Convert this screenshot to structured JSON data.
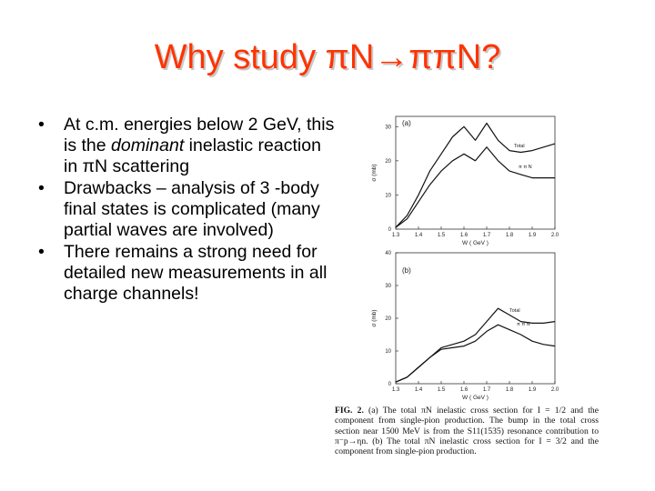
{
  "slide": {
    "title": "Why study πN→ππN?",
    "bullets": [
      {
        "before": "At c.m. energies below 2 GeV, this is the ",
        "emph": "dominant",
        "after": " inelastic reaction in πN scattering"
      },
      {
        "before": "Drawbacks – analysis of 3 -body final states is complicated (many partial waves are involved)",
        "emph": "",
        "after": ""
      },
      {
        "before": "There remains a strong need for detailed new measurements in all charge channels!",
        "emph": "",
        "after": ""
      }
    ],
    "bullet_marker": "•"
  },
  "figure": {
    "panels": [
      {
        "label": "(a)",
        "ylabel": "σ (mb)",
        "xlabel": "W ( GeV )",
        "yticks": [
          "0",
          "10",
          "20",
          "30"
        ],
        "xticks": [
          "1.3",
          "1.4",
          "1.5",
          "1.6",
          "1.7",
          "1.8",
          "1.9",
          "2.0"
        ],
        "curve_labels": [
          "Total",
          "π π N"
        ]
      },
      {
        "label": "(b)",
        "ylabel": "σ (mb)",
        "xlabel": "W ( GeV )",
        "yticks": [
          "0",
          "10",
          "20",
          "30",
          "40"
        ],
        "xticks": [
          "1.3",
          "1.4",
          "1.5",
          "1.6",
          "1.7",
          "1.8",
          "1.9",
          "2.0"
        ],
        "curve_labels": [
          "Total",
          "π π N"
        ]
      }
    ],
    "caption": {
      "fig_label": "FIG. 2.",
      "text": "(a) The total πN inelastic cross section for I = 1/2 and the component from single-pion production. The bump in the total cross section near 1500 MeV is from the S11(1535) resonance contribution to π⁻p→ηn. (b) The total πN inelastic cross section for I = 3/2 and the component from single-pion production."
    }
  },
  "chart_data": [
    {
      "type": "line",
      "title": "(a)",
      "xlabel": "W ( GeV )",
      "ylabel": "σ (mb)",
      "xlim": [
        1.3,
        2.0
      ],
      "ylim": [
        0,
        33
      ],
      "grid": false,
      "series": [
        {
          "name": "Total",
          "x": [
            1.3,
            1.35,
            1.4,
            1.45,
            1.5,
            1.55,
            1.6,
            1.65,
            1.7,
            1.75,
            1.8,
            1.85,
            1.9,
            1.95,
            2.0
          ],
          "y": [
            0.5,
            4,
            10,
            17,
            22,
            27,
            30,
            26,
            31,
            26,
            23,
            22.5,
            23,
            24,
            25
          ]
        },
        {
          "name": "π π N",
          "x": [
            1.3,
            1.35,
            1.4,
            1.45,
            1.5,
            1.55,
            1.6,
            1.65,
            1.7,
            1.75,
            1.8,
            1.85,
            1.9,
            1.95,
            2.0
          ],
          "y": [
            0.5,
            3,
            8,
            13,
            17,
            20,
            22,
            20,
            24,
            20,
            17,
            16,
            15,
            15,
            15
          ]
        }
      ]
    },
    {
      "type": "line",
      "title": "(b)",
      "xlabel": "W ( GeV )",
      "ylabel": "σ (mb)",
      "xlim": [
        1.3,
        2.0
      ],
      "ylim": [
        0,
        40
      ],
      "grid": false,
      "series": [
        {
          "name": "Total",
          "x": [
            1.3,
            1.35,
            1.4,
            1.45,
            1.5,
            1.55,
            1.6,
            1.65,
            1.7,
            1.75,
            1.8,
            1.85,
            1.9,
            1.95,
            2.0
          ],
          "y": [
            0.5,
            2,
            5,
            8,
            11,
            12,
            13,
            15,
            19,
            23,
            21,
            19,
            18.5,
            18.5,
            19
          ]
        },
        {
          "name": "π π N",
          "x": [
            1.3,
            1.35,
            1.4,
            1.45,
            1.5,
            1.55,
            1.6,
            1.65,
            1.7,
            1.75,
            1.8,
            1.85,
            1.9,
            1.95,
            2.0
          ],
          "y": [
            0.5,
            2,
            5,
            8,
            10.5,
            11,
            11.5,
            13,
            16,
            18,
            16.5,
            15,
            13,
            12,
            11.5
          ]
        }
      ]
    }
  ]
}
